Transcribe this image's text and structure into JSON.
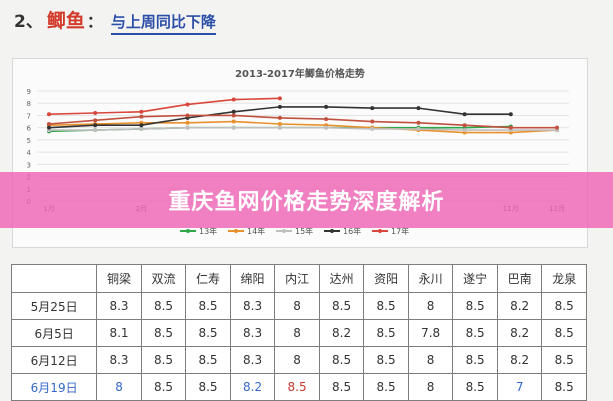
{
  "heading": {
    "number": "2、",
    "fish": "鲫鱼",
    "colon": "：",
    "trend": "与上周同比下降"
  },
  "banner": {
    "text": "重庆鱼网价格走势深度解析"
  },
  "chart_data": {
    "type": "line",
    "title": "2013-2017年鲫鱼价格走势",
    "xlabel": "",
    "ylabel": "",
    "ylim": [
      0,
      9
    ],
    "yticks": [
      "0",
      "1",
      "2",
      "3",
      "4",
      "5",
      "6",
      "7",
      "8",
      "9"
    ],
    "categories": [
      "1月",
      "2月",
      "3月",
      "4月",
      "5月",
      "6月",
      "7月",
      "8月",
      "9月",
      "10月",
      "11月",
      "12月"
    ],
    "x_tick_labels": [
      "1月",
      "",
      "2月",
      "",
      "",
      "",
      "",
      "",
      "",
      "",
      "11月",
      "12月"
    ],
    "series": [
      {
        "name": "13年",
        "color": "#2ea64a",
        "values": [
          5.7,
          5.8,
          5.9,
          6.0,
          6.0,
          6.0,
          6.0,
          6.0,
          6.0,
          6.0,
          6.1,
          null
        ]
      },
      {
        "name": "14年",
        "color": "#e8902b",
        "values": [
          6.2,
          6.3,
          6.4,
          6.4,
          6.5,
          6.3,
          6.2,
          6.0,
          5.8,
          5.6,
          5.6,
          5.8
        ]
      },
      {
        "name": "15年",
        "color": "#bfbfbf",
        "values": [
          5.8,
          5.8,
          5.9,
          6.0,
          6.0,
          6.0,
          6.0,
          5.9,
          5.9,
          5.8,
          5.8,
          5.8
        ]
      },
      {
        "name": "16年",
        "color": "#333333",
        "values": [
          6.0,
          6.2,
          6.2,
          6.8,
          7.3,
          7.7,
          7.7,
          7.6,
          7.6,
          7.1,
          7.1,
          null
        ]
      },
      {
        "name": "17年",
        "color": "#d9463b",
        "values": [
          7.1,
          7.2,
          7.3,
          7.9,
          8.3,
          8.4,
          null,
          null,
          null,
          null,
          null,
          null
        ]
      },
      {
        "name": "",
        "color": "#c1503f",
        "values": [
          6.3,
          6.6,
          6.9,
          7.0,
          7.0,
          6.8,
          6.7,
          6.5,
          6.4,
          6.2,
          6.0,
          6.0
        ]
      }
    ],
    "legend_position": "bottom",
    "grid": true
  },
  "table": {
    "headers": [
      "",
      "铜梁",
      "双流",
      "仁寿",
      "绵阳",
      "内江",
      "达州",
      "资阳",
      "永川",
      "遂宁",
      "巴南",
      "龙泉"
    ],
    "rows": [
      [
        "5月25日",
        "8.3",
        "8.5",
        "8.5",
        "8.3",
        "8",
        "8.5",
        "8.5",
        "8",
        "8.5",
        "8.2",
        "8.5"
      ],
      [
        "6月5日",
        "8.1",
        "8.5",
        "8.5",
        "8.3",
        "8",
        "8.2",
        "8.5",
        "7.8",
        "8.5",
        "8.2",
        "8.5"
      ],
      [
        "6月12日",
        "8.3",
        "8.5",
        "8.5",
        "8.3",
        "8",
        "8.5",
        "8.5",
        "8",
        "8.5",
        "8.2",
        "8.5"
      ],
      [
        "6月19日",
        "8",
        "8.5",
        "8.5",
        "8.2",
        "8.5",
        "8.5",
        "8.5",
        "8",
        "8.5",
        "7",
        "8.5"
      ]
    ],
    "highlight_blue": "#3567c9",
    "highlight_red": "#c93a2f"
  }
}
